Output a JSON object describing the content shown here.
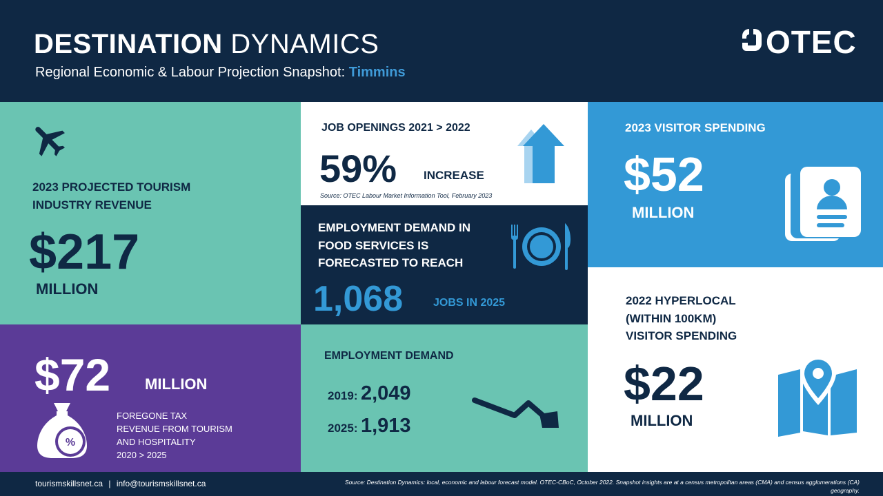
{
  "header": {
    "title_bold": "DESTINATION",
    "title_light": "DYNAMICS",
    "subtitle": "Regional Economic & Labour Projection Snapshot:",
    "city": "Timmins",
    "logo_text": "OTEC"
  },
  "revenue": {
    "label_line1": "2023 PROJECTED TOURISM",
    "label_line2": "INDUSTRY REVENUE",
    "amount": "$217",
    "unit": "MILLION",
    "icon": "airplane-icon"
  },
  "jobs": {
    "label": "JOB OPENINGS  2021 > 2022",
    "percent": "59%",
    "increase": "INCREASE",
    "source": "Source: OTEC Labour Market Information Tool, February 2023",
    "icon": "up-arrow-icon"
  },
  "food": {
    "line1": "EMPLOYMENT DEMAND IN",
    "line2": "FOOD SERVICES IS",
    "line3": "FORECASTED TO REACH",
    "number": "1,068",
    "suffix": "JOBS IN 2025",
    "icon": "plate-cutlery-icon"
  },
  "visitor": {
    "label": "2023 VISITOR SPENDING",
    "amount": "$52",
    "unit": "MILLION",
    "icon": "passport-icon"
  },
  "hyperlocal": {
    "line1": "2022 HYPERLOCAL",
    "line2": "(WITHIN 100KM)",
    "line3": "VISITOR SPENDING",
    "amount": "$22",
    "unit": "MILLION",
    "icon": "map-pin-icon"
  },
  "tax": {
    "amount": "$72",
    "unit": "MILLION",
    "line1": "FOREGONE TAX",
    "line2": "REVENUE FROM TOURISM",
    "line3": "AND HOSPITALITY",
    "line4": "2020 > 2025",
    "icon": "money-bag-icon"
  },
  "demand": {
    "label": "EMPLOYMENT  DEMAND",
    "y1_label": "2019:",
    "y1_value": "2,049",
    "y2_label": "2025:",
    "y2_value": "1,913",
    "icon": "trend-down-icon"
  },
  "footer": {
    "site": "tourismskillsnet.ca",
    "separator": "|",
    "email": "info@tourismskillsnet.ca",
    "source_line1": "Source: Destination Dynamics: local, economic and labour forecast model. OTEC-CBoC, October 2022. Snapshot insights are at a census metropolitan areas (CMA) and census agglomerations (CA)",
    "source_line2": "geography."
  },
  "colors": {
    "navy": "#0f2844",
    "teal": "#6ac4b2",
    "blue": "#3399d6",
    "purple": "#5b3b97",
    "accent": "#3f9ad7"
  }
}
